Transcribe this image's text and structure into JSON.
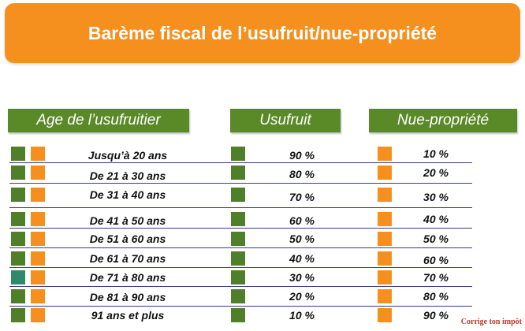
{
  "title": "Barème fiscal de l’usufruit/nue-propriété",
  "headers": {
    "age": "Age de l’usufruitier",
    "usufruit": "Usufruit",
    "nue": "Nue-propriété"
  },
  "rows": [
    {
      "age": "Jusqu’à 20 ans",
      "usufruit": "90 %",
      "nue": "10 %"
    },
    {
      "age": "De 21 à 30 ans",
      "usufruit": "80 %",
      "nue": "20 %"
    },
    {
      "age": "De 31 à 40 ans",
      "usufruit": "70 %",
      "nue": "30 %"
    },
    {
      "age": "De 41 à 50 ans",
      "usufruit": "60 %",
      "nue": "40 %"
    },
    {
      "age": "De 51 à 60 ans",
      "usufruit": "50 %",
      "nue": "50 %"
    },
    {
      "age": "De 61 à 70 ans",
      "usufruit": "40 %",
      "nue": "60 %"
    },
    {
      "age": "De 71 à 80 ans",
      "usufruit": "30 %",
      "nue": "70 %"
    },
    {
      "age": "De 81 à 90 ans",
      "usufruit": "20 %",
      "nue": "80 %"
    },
    {
      "age": "91 ans et plus",
      "usufruit": "10 %",
      "nue": "90 %"
    }
  ],
  "credit": "Corrige ton impôt",
  "colors": {
    "green": "#4f7f28",
    "orange": "#f5901e",
    "header_green": "#5a8a28"
  }
}
